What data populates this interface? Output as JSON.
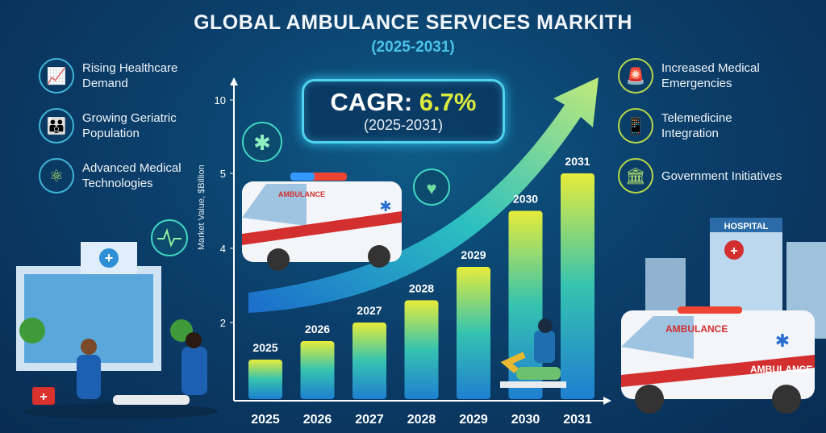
{
  "header": {
    "title": "GLOBAL AMBULANCE SERVICES MARKITH",
    "subtitle": "(2025-2031)"
  },
  "cagr": {
    "label": "CAGR: ",
    "value": "6.7%",
    "period": "(2025-2031)"
  },
  "left_features": [
    {
      "label": "Rising Healthcare Demand",
      "icon": "chart-growth-icon"
    },
    {
      "label": "Growing Geriatric Population",
      "icon": "elderly-people-icon"
    },
    {
      "label": "Advanced Medical Technologies",
      "icon": "atom-icon"
    }
  ],
  "right_features": [
    {
      "label": "Increased Medical Emergencies",
      "icon": "siren-icon"
    },
    {
      "label": "Telemedicine Integration",
      "icon": "phone-doctor-icon"
    },
    {
      "label": "Government Initiatives",
      "icon": "capitol-building-icon"
    }
  ],
  "illustrations": {
    "ambulance_text": "AMBULANCE",
    "hospital_text": "HOSPITAL"
  },
  "colors": {
    "bar_top": "#e6ec3a",
    "bar_bottom": "#1f8fd6",
    "accent": "#49c3ea"
  },
  "chart_data": {
    "type": "bar",
    "title": "GLOBAL AMBULANCE SERVICES MARKITH (2025-2031)",
    "xlabel": "",
    "ylabel": "Market Value, $Billion",
    "categories": [
      "2025",
      "2026",
      "2027",
      "2028",
      "2029",
      "2030",
      "2031"
    ],
    "values": [
      1.0,
      1.5,
      2.0,
      2.6,
      3.5,
      4.5,
      5.0
    ],
    "bar_labels": [
      "2025",
      "2026",
      "2027",
      "2028",
      "2029",
      "2030",
      "2031"
    ],
    "y_ticks": [
      "2",
      "4",
      "5",
      "10"
    ],
    "grid": false,
    "trend_arrow": true
  }
}
